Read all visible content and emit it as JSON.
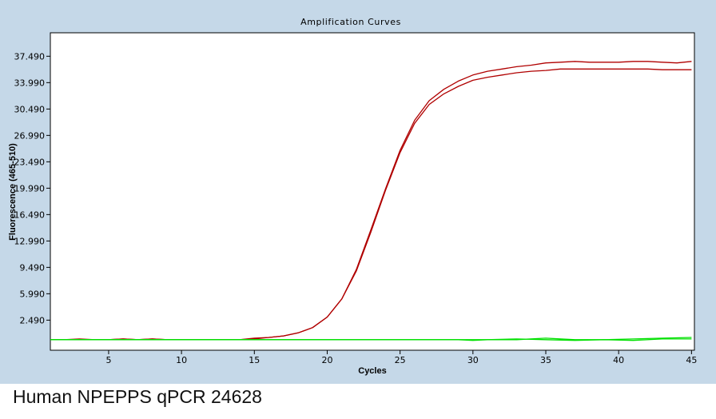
{
  "caption": "Human NPEPPS qPCR 24628",
  "chart_data": {
    "type": "line",
    "title": "Amplification Curves",
    "xlabel": "Cycles",
    "ylabel": "Fluorescence (465-510)",
    "xlim": [
      1,
      45.2
    ],
    "ylim": [
      -1.5,
      40.6
    ],
    "x_ticks": [
      5,
      10,
      15,
      20,
      25,
      30,
      35,
      40,
      45
    ],
    "y_ticks": [
      2.49,
      5.99,
      9.49,
      12.99,
      16.49,
      19.99,
      23.49,
      26.99,
      30.49,
      33.99,
      37.49
    ],
    "y_tick_labels": [
      "2.490",
      "5.990",
      "9.490",
      "12.990",
      "16.490",
      "19.990",
      "23.490",
      "26.990",
      "30.490",
      "33.990",
      "37.490"
    ],
    "grid": false,
    "background": "#c5d8e8",
    "plot_background": "#ffffff",
    "series": [
      {
        "color": "#b00000",
        "x": [
          1,
          2,
          3,
          4,
          5,
          6,
          7,
          8,
          9,
          10,
          11,
          12,
          13,
          14,
          15,
          16,
          17,
          18,
          19,
          20,
          21,
          22,
          23,
          24,
          25,
          26,
          27,
          28,
          29,
          30,
          31,
          32,
          33,
          34,
          35,
          36,
          37,
          38,
          39,
          40,
          41,
          42,
          43,
          44,
          45
        ],
        "y": [
          -0.1,
          -0.1,
          0,
          -0.1,
          -0.1,
          0,
          -0.1,
          0,
          -0.1,
          -0.1,
          -0.1,
          -0.1,
          -0.1,
          -0.1,
          0.1,
          0.2,
          0.4,
          0.8,
          1.5,
          2.9,
          5.3,
          9.2,
          14.5,
          19.9,
          25,
          29,
          31.6,
          33.1,
          34.2,
          35,
          35.5,
          35.8,
          36.1,
          36.3,
          36.6,
          36.7,
          36.8,
          36.7,
          36.7,
          36.7,
          36.8,
          36.8,
          36.7,
          36.6,
          36.8
        ]
      },
      {
        "color": "#b00000",
        "x": [
          1,
          2,
          3,
          4,
          5,
          6,
          7,
          8,
          9,
          10,
          11,
          12,
          13,
          14,
          15,
          16,
          17,
          18,
          19,
          20,
          21,
          22,
          23,
          24,
          25,
          26,
          27,
          28,
          29,
          30,
          31,
          32,
          33,
          34,
          35,
          36,
          37,
          38,
          39,
          40,
          41,
          42,
          43,
          44,
          45
        ],
        "y": [
          -0.1,
          -0.1,
          -0.1,
          -0.1,
          -0.1,
          0,
          -0.1,
          0,
          -0.1,
          -0.1,
          -0.1,
          -0.1,
          -0.1,
          -0.1,
          0,
          0.2,
          0.4,
          0.8,
          1.5,
          2.9,
          5.3,
          9.0,
          14.2,
          19.7,
          24.7,
          28.6,
          31.1,
          32.5,
          33.5,
          34.3,
          34.7,
          35,
          35.3,
          35.5,
          35.6,
          35.8,
          35.8,
          35.8,
          35.8,
          35.8,
          35.8,
          35.8,
          35.7,
          35.7,
          35.7
        ]
      },
      {
        "color": "#00e000",
        "x": [
          1,
          3,
          5,
          7,
          9,
          11,
          13,
          15,
          17,
          19,
          21,
          23,
          25,
          27,
          29,
          30,
          31,
          33,
          35,
          37,
          39,
          41,
          43,
          45
        ],
        "y": [
          -0.1,
          -0.1,
          -0.1,
          -0.1,
          -0.1,
          -0.1,
          -0.1,
          -0.1,
          -0.1,
          -0.1,
          -0.1,
          -0.1,
          -0.1,
          -0.1,
          -0.1,
          -0.2,
          -0.1,
          -0.1,
          0.1,
          -0.1,
          -0.1,
          0,
          0.1,
          0.2
        ]
      },
      {
        "color": "#00e000",
        "x": [
          1,
          3,
          5,
          7,
          9,
          11,
          13,
          15,
          17,
          19,
          21,
          23,
          25,
          27,
          29,
          31,
          33,
          35,
          37,
          39,
          41,
          43,
          45
        ],
        "y": [
          -0.1,
          -0.1,
          -0.1,
          -0.1,
          -0.1,
          -0.1,
          -0.1,
          -0.1,
          -0.1,
          -0.1,
          -0.1,
          -0.1,
          -0.1,
          -0.1,
          -0.1,
          -0.1,
          0,
          -0.1,
          -0.2,
          -0.1,
          -0.2,
          0,
          0
        ]
      }
    ]
  }
}
